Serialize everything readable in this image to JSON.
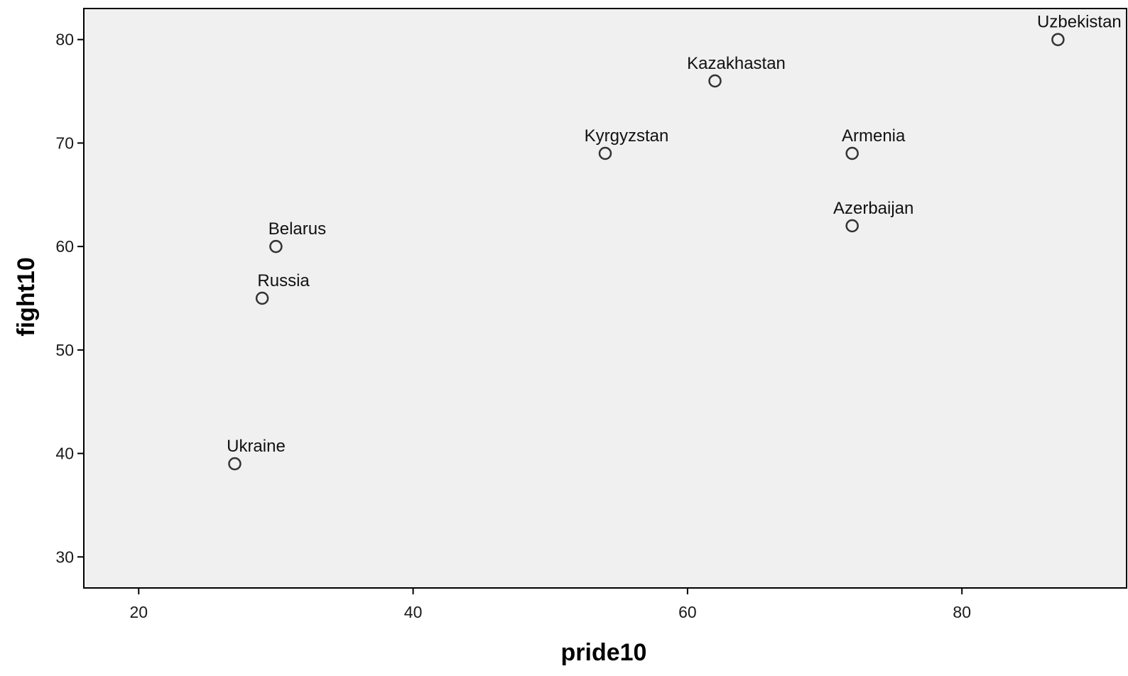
{
  "chart_data": {
    "type": "scatter",
    "title": "",
    "xlabel": "pride10",
    "ylabel": "fight10",
    "xlim": [
      16,
      92
    ],
    "ylim": [
      27,
      83
    ],
    "xticks": [
      20,
      40,
      60,
      80
    ],
    "yticks": [
      30,
      40,
      50,
      60,
      70,
      80
    ],
    "grid": false,
    "colors": {
      "plot_background": "#f0f0f0",
      "marker": "#333333",
      "axis": "#000000"
    },
    "points": [
      {
        "label": "Uzbekistan",
        "x": 87,
        "y": 80
      },
      {
        "label": "Kazakhastan",
        "x": 62,
        "y": 76
      },
      {
        "label": "Kyrgyzstan",
        "x": 54,
        "y": 69
      },
      {
        "label": "Armenia",
        "x": 72,
        "y": 69
      },
      {
        "label": "Azerbaijan",
        "x": 72,
        "y": 62
      },
      {
        "label": "Belarus",
        "x": 30,
        "y": 60
      },
      {
        "label": "Russia",
        "x": 29,
        "y": 55
      },
      {
        "label": "Ukraine",
        "x": 27,
        "y": 39
      }
    ]
  }
}
